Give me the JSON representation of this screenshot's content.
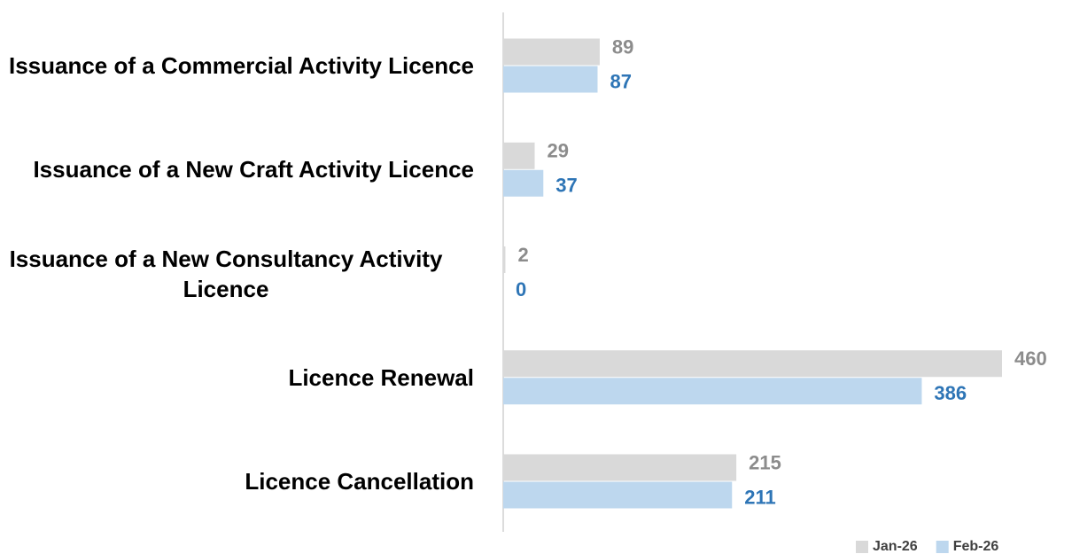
{
  "chart_data": {
    "type": "bar",
    "orientation": "horizontal",
    "categories": [
      "Issuance of a Commercial Activity Licence",
      "Issuance of a New Craft Activity Licence",
      "Issuance of a New Consultancy Activity Licence",
      "Licence Renewal",
      "Licence Cancellation"
    ],
    "series": [
      {
        "name": "Jan-26",
        "color": "#d9d9d9",
        "label_color": "#8c8c8c",
        "values": [
          89,
          29,
          2,
          460,
          215
        ]
      },
      {
        "name": "Feb-26",
        "color": "#bdd7ee",
        "label_color": "#2e75b6",
        "values": [
          87,
          37,
          0,
          386,
          211
        ]
      }
    ],
    "legend": "bottom-right"
  }
}
